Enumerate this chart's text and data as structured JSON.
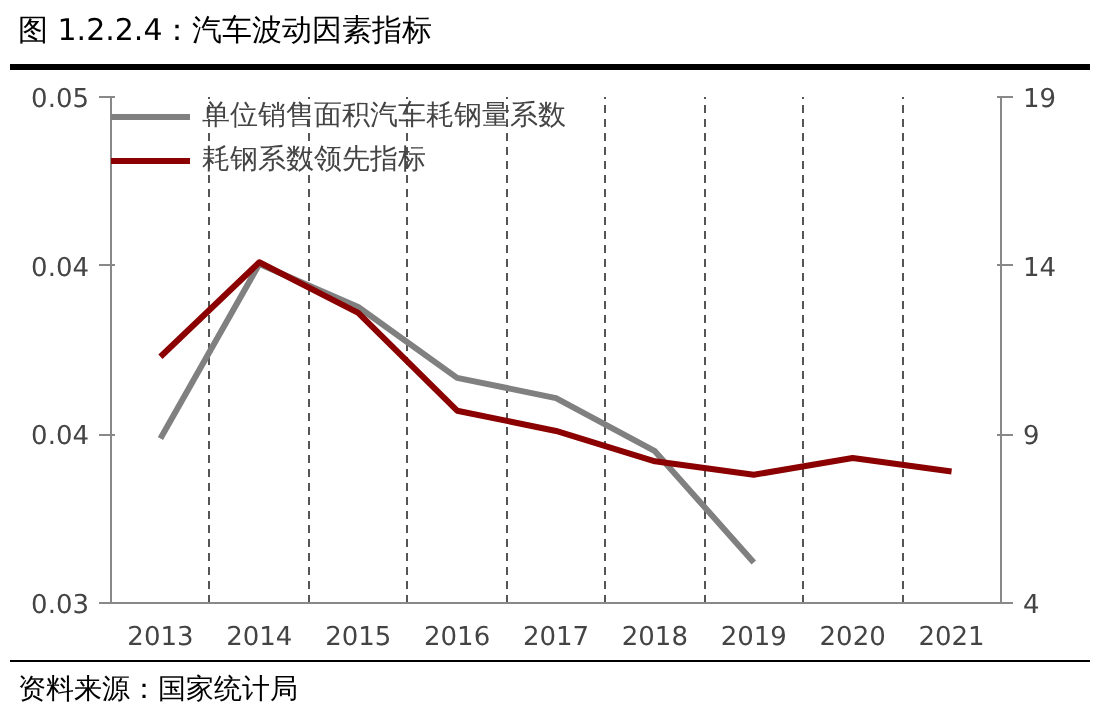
{
  "chart_data": {
    "type": "line",
    "title": "图 1.2.2.4：汽车波动因素指标",
    "categories": [
      "2013",
      "2014",
      "2015",
      "2016",
      "2017",
      "2018",
      "2019",
      "2020",
      "2021"
    ],
    "series": [
      {
        "name": "单位销售面积汽车耗钢量系数",
        "color": "#808080",
        "values": [
          0.0365,
          0.0434,
          0.0417,
          0.0389,
          0.0381,
          0.036,
          0.0316,
          null,
          null
        ]
      },
      {
        "name": "耗钢系数领先指标",
        "color": "#8b0000",
        "axis": "y2",
        "values": [
          11.3,
          14.1,
          12.6,
          9.7,
          9.1,
          8.2,
          7.8,
          8.3,
          7.9
        ]
      }
    ],
    "ylim": [
      0.03,
      0.05
    ],
    "yticks": [
      0.03,
      {
        "value": 0.03667,
        "label": "0.04"
      },
      {
        "value": 0.04333,
        "label": "0.04"
      },
      0.05
    ],
    "y2lim": [
      4,
      19
    ],
    "y2ticks": [
      4,
      9,
      14,
      19
    ],
    "grid": "x",
    "legend": "top left",
    "line_style": "solid",
    "marker": "none",
    "annotations": [
      "资料来源：国家统计局"
    ]
  }
}
